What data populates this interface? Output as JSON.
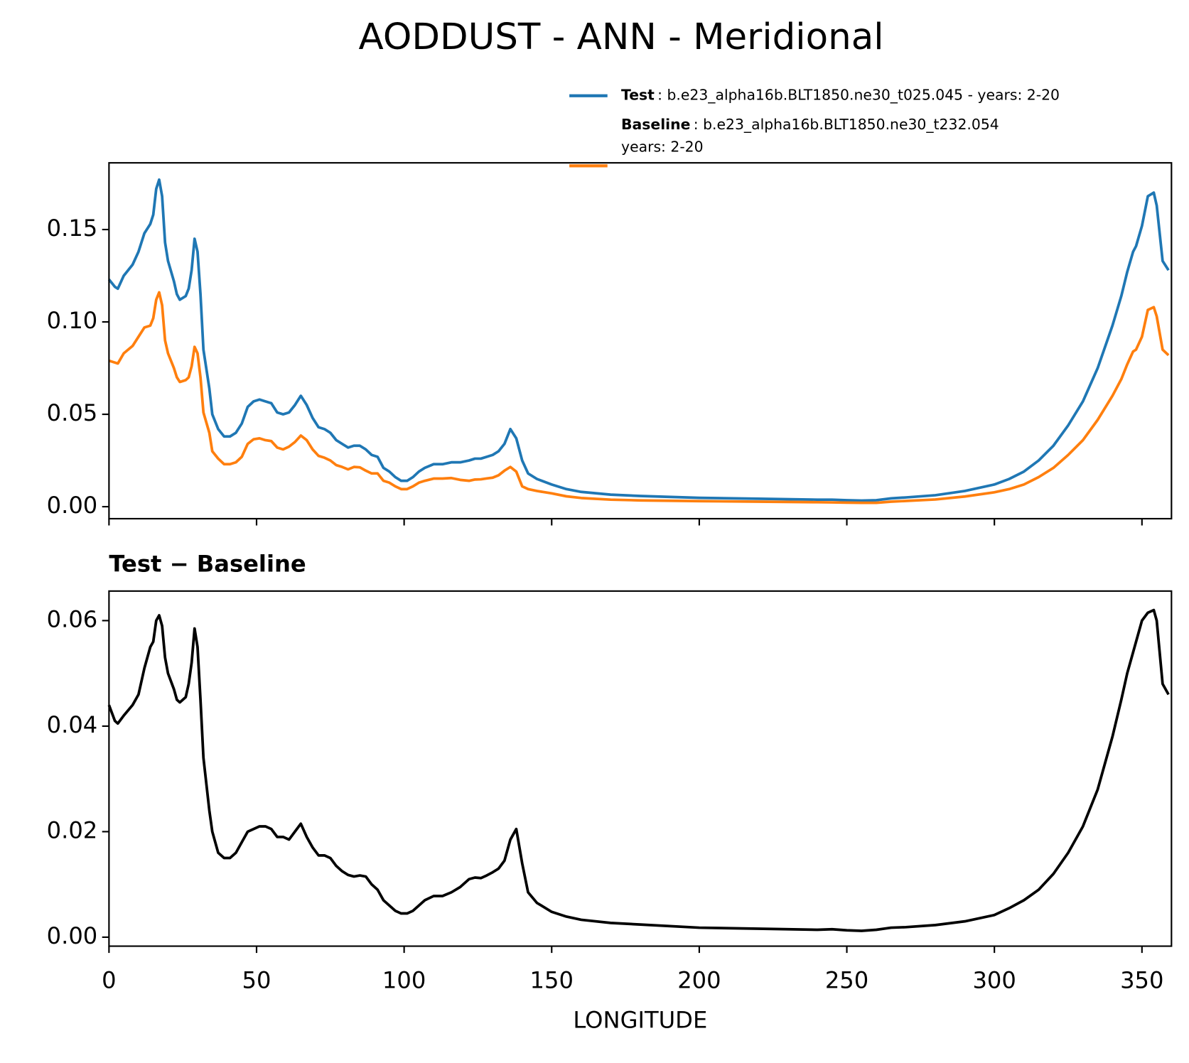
{
  "title": "AODDUST - ANN - Meridional",
  "chart_data": [
    {
      "type": "line",
      "x": [
        0,
        2,
        3,
        5,
        8,
        10,
        12,
        14,
        15,
        16,
        17,
        18,
        19,
        20,
        22,
        23,
        24,
        26,
        27,
        28,
        29,
        30,
        31,
        32,
        34,
        35,
        37,
        39,
        41,
        43,
        45,
        47,
        49,
        51,
        53,
        55,
        57,
        59,
        61,
        63,
        65,
        67,
        69,
        71,
        73,
        75,
        77,
        79,
        81,
        83,
        85,
        87,
        89,
        91,
        93,
        95,
        97,
        99,
        101,
        103,
        105,
        107,
        110,
        113,
        116,
        119,
        122,
        124,
        126,
        128,
        130,
        132,
        134,
        136,
        138,
        140,
        142,
        145,
        150,
        155,
        160,
        170,
        180,
        200,
        220,
        240,
        245,
        250,
        255,
        260,
        265,
        270,
        280,
        290,
        300,
        305,
        310,
        315,
        320,
        325,
        330,
        335,
        340,
        343,
        345,
        347,
        348,
        350,
        352,
        354,
        355,
        357,
        359
      ],
      "series": [
        {
          "name": "Test",
          "description": ": b.e23_alpha16b.BLT1850.ne30_t025.045 - years: 2-20",
          "color": "#1f77b4",
          "values": [
            0.123,
            0.119,
            0.118,
            0.125,
            0.131,
            0.138,
            0.148,
            0.153,
            0.158,
            0.172,
            0.177,
            0.168,
            0.143,
            0.133,
            0.122,
            0.115,
            0.112,
            0.114,
            0.118,
            0.128,
            0.145,
            0.138,
            0.115,
            0.085,
            0.064,
            0.05,
            0.042,
            0.038,
            0.038,
            0.04,
            0.045,
            0.054,
            0.057,
            0.058,
            0.057,
            0.056,
            0.051,
            0.05,
            0.051,
            0.055,
            0.06,
            0.055,
            0.048,
            0.043,
            0.042,
            0.04,
            0.036,
            0.034,
            0.032,
            0.033,
            0.033,
            0.031,
            0.028,
            0.027,
            0.021,
            0.019,
            0.016,
            0.014,
            0.014,
            0.016,
            0.019,
            0.021,
            0.023,
            0.023,
            0.024,
            0.024,
            0.025,
            0.026,
            0.026,
            0.027,
            0.028,
            0.03,
            0.034,
            0.042,
            0.037,
            0.025,
            0.018,
            0.015,
            0.012,
            0.0095,
            0.008,
            0.0065,
            0.0058,
            0.0048,
            0.0043,
            0.0038,
            0.0038,
            0.0035,
            0.0033,
            0.0035,
            0.0045,
            0.005,
            0.0062,
            0.0085,
            0.012,
            0.015,
            0.019,
            0.025,
            0.033,
            0.044,
            0.057,
            0.075,
            0.098,
            0.114,
            0.127,
            0.138,
            0.141,
            0.152,
            0.168,
            0.17,
            0.163,
            0.133,
            0.128
          ]
        },
        {
          "name": "Baseline",
          "description": [
            ": b.e23_alpha16b.BLT1850.ne30_t232.054",
            "years: 2-20"
          ],
          "color": "#ff7f0e",
          "values": [
            0.079,
            0.078,
            0.0775,
            0.083,
            0.087,
            0.092,
            0.097,
            0.098,
            0.102,
            0.112,
            0.116,
            0.109,
            0.09,
            0.083,
            0.075,
            0.07,
            0.0675,
            0.0685,
            0.07,
            0.076,
            0.0865,
            0.083,
            0.07,
            0.051,
            0.04,
            0.03,
            0.026,
            0.023,
            0.023,
            0.024,
            0.027,
            0.034,
            0.0365,
            0.037,
            0.036,
            0.0355,
            0.032,
            0.031,
            0.0325,
            0.035,
            0.0385,
            0.036,
            0.031,
            0.0275,
            0.0265,
            0.025,
            0.0225,
            0.0215,
            0.0202,
            0.0215,
            0.0213,
            0.0195,
            0.018,
            0.018,
            0.014,
            0.013,
            0.011,
            0.0095,
            0.0095,
            0.011,
            0.013,
            0.014,
            0.0152,
            0.0152,
            0.0155,
            0.0145,
            0.014,
            0.0147,
            0.0148,
            0.0153,
            0.0157,
            0.017,
            0.0195,
            0.0215,
            0.019,
            0.011,
            0.0095,
            0.0085,
            0.0072,
            0.0056,
            0.0047,
            0.0038,
            0.0034,
            0.003,
            0.0027,
            0.0024,
            0.0023,
            0.0022,
            0.0021,
            0.0021,
            0.0027,
            0.0031,
            0.0039,
            0.0055,
            0.0078,
            0.0095,
            0.012,
            0.016,
            0.021,
            0.028,
            0.036,
            0.047,
            0.06,
            0.069,
            0.077,
            0.084,
            0.085,
            0.092,
            0.1065,
            0.108,
            0.103,
            0.085,
            0.082
          ]
        }
      ],
      "xlim": [
        0,
        360
      ],
      "xticks": [
        0,
        50,
        100,
        150,
        200,
        250,
        300,
        350
      ],
      "xtick_labels": false,
      "ylim": [
        -0.0065,
        0.1861
      ],
      "yticks": [
        {
          "value": 0,
          "label": "0.00"
        },
        {
          "value": 0.05,
          "label": "0.05"
        },
        {
          "value": 0.1,
          "label": "0.10"
        },
        {
          "value": 0.15,
          "label": "0.15"
        }
      ],
      "legend": "upper right"
    },
    {
      "type": "line",
      "title": "Test − Baseline",
      "xlabel": "LONGITUDE",
      "x": [
        0,
        2,
        3,
        5,
        8,
        10,
        12,
        14,
        15,
        16,
        17,
        18,
        19,
        20,
        22,
        23,
        24,
        26,
        27,
        28,
        29,
        30,
        31,
        32,
        34,
        35,
        37,
        39,
        41,
        43,
        45,
        47,
        49,
        51,
        53,
        55,
        57,
        59,
        61,
        63,
        65,
        67,
        69,
        71,
        73,
        75,
        77,
        79,
        81,
        83,
        85,
        87,
        89,
        91,
        93,
        95,
        97,
        99,
        101,
        103,
        105,
        107,
        110,
        113,
        116,
        119,
        122,
        124,
        126,
        128,
        130,
        132,
        134,
        136,
        138,
        140,
        142,
        145,
        150,
        155,
        160,
        170,
        180,
        200,
        220,
        240,
        245,
        250,
        255,
        260,
        265,
        270,
        280,
        290,
        300,
        305,
        310,
        315,
        320,
        325,
        330,
        335,
        340,
        343,
        345,
        347,
        348,
        350,
        352,
        354,
        355,
        357,
        359
      ],
      "series": [
        {
          "color": "#000000",
          "values": [
            0.044,
            0.041,
            0.0405,
            0.042,
            0.044,
            0.046,
            0.051,
            0.055,
            0.056,
            0.06,
            0.061,
            0.059,
            0.053,
            0.05,
            0.047,
            0.045,
            0.0445,
            0.0455,
            0.048,
            0.052,
            0.0585,
            0.055,
            0.045,
            0.034,
            0.024,
            0.02,
            0.016,
            0.015,
            0.015,
            0.016,
            0.018,
            0.02,
            0.0205,
            0.021,
            0.021,
            0.0205,
            0.019,
            0.019,
            0.0185,
            0.02,
            0.0215,
            0.019,
            0.017,
            0.0155,
            0.0155,
            0.015,
            0.0135,
            0.0125,
            0.0118,
            0.0115,
            0.0117,
            0.0115,
            0.01,
            0.009,
            0.007,
            0.006,
            0.005,
            0.0045,
            0.0045,
            0.005,
            0.006,
            0.007,
            0.0078,
            0.0078,
            0.0085,
            0.0095,
            0.011,
            0.0113,
            0.0112,
            0.0117,
            0.0123,
            0.013,
            0.0145,
            0.0185,
            0.0205,
            0.014,
            0.0085,
            0.0065,
            0.0048,
            0.0039,
            0.0033,
            0.0027,
            0.0024,
            0.0018,
            0.0016,
            0.0014,
            0.0015,
            0.0013,
            0.0012,
            0.0014,
            0.0018,
            0.0019,
            0.0023,
            0.003,
            0.0042,
            0.0055,
            0.007,
            0.009,
            0.012,
            0.016,
            0.021,
            0.028,
            0.038,
            0.045,
            0.05,
            0.054,
            0.056,
            0.06,
            0.0615,
            0.062,
            0.06,
            0.048,
            0.046
          ]
        }
      ],
      "xlim": [
        0,
        360
      ],
      "xticks": [
        0,
        50,
        100,
        150,
        200,
        250,
        300,
        350
      ],
      "ylim": [
        -0.0017,
        0.0656
      ],
      "yticks": [
        {
          "value": 0,
          "label": "0.00"
        },
        {
          "value": 0.02,
          "label": "0.02"
        },
        {
          "value": 0.04,
          "label": "0.04"
        },
        {
          "value": 0.06,
          "label": "0.06"
        }
      ]
    }
  ]
}
